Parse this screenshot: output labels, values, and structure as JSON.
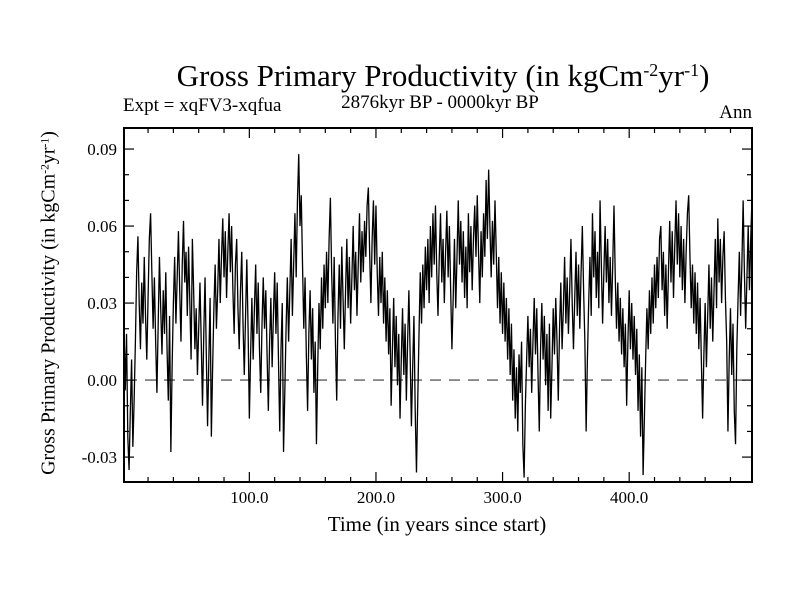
{
  "page": {
    "background": "#ffffff",
    "foreground": "#000000"
  },
  "header": {
    "title": {
      "base1": "Gross Primary Productivity (in kgCm",
      "sup1": "-2",
      "base2": "yr",
      "sup2": "-1",
      "base3": ")"
    },
    "subtitle": "2876kyr BP - 0000kyr BP",
    "experiment_label": "Expt = xqFV3-xqfua",
    "season_label": "Ann"
  },
  "axes": {
    "xlabel": "Time (in years since start)",
    "ylabel": {
      "base1": "Gross Primary Productivity (in kgCm",
      "sup1": "-2",
      "base2": "yr",
      "sup2": "-1",
      "base3": ")"
    }
  },
  "chart_data": {
    "type": "line",
    "title": "Gross Primary Productivity (in kgCm-2yr-1)",
    "subtitle": "2876kyr BP - 0000kyr BP",
    "annotations": [
      "Expt = xqFV3-xqfua",
      "Ann"
    ],
    "xlabel": "Time (in years since start)",
    "ylabel": "Gross Primary Productivity (in kgCm-2yr-1)",
    "xlim": [
      1,
      497
    ],
    "ylim": [
      -0.0397,
      0.0982
    ],
    "xticks": {
      "major": [
        100,
        200,
        300,
        400
      ],
      "labels": [
        "100.0",
        "200.0",
        "300.0",
        "400.0"
      ],
      "minor_step": 20
    },
    "yticks": {
      "major": [
        -0.03,
        0.0,
        0.03,
        0.06,
        0.09
      ],
      "labels": [
        "-0.03",
        "0.00",
        "0.03",
        "0.06",
        "0.09"
      ],
      "minor_step": 0.01
    },
    "zero_line": {
      "value": 0.0,
      "style": "dashed",
      "color": "#3a3a3a"
    },
    "line_color": "#000000",
    "grid": false,
    "legend": null,
    "x_start": 1,
    "x_step": 1,
    "values": [
      0.021,
      -0.004,
      0.018,
      -0.022,
      -0.035,
      -0.012,
      0.008,
      -0.026,
      -0.008,
      0.015,
      0.042,
      0.056,
      0.03,
      0.012,
      0.038,
      0.022,
      0.048,
      0.025,
      0.008,
      0.032,
      0.055,
      0.065,
      0.042,
      0.02,
      0.04,
      0.015,
      -0.005,
      0.022,
      0.048,
      0.028,
      0.01,
      0.035,
      0.018,
      0.042,
      0.012,
      -0.008,
      0.025,
      -0.028,
      0.005,
      0.03,
      0.048,
      0.022,
      0.04,
      0.058,
      0.035,
      0.015,
      0.045,
      0.062,
      0.038,
      0.05,
      0.025,
      0.052,
      0.03,
      0.008,
      0.055,
      0.035,
      0.012,
      0.028,
      0.002,
      0.02,
      0.038,
      0.015,
      -0.01,
      0.018,
      0.04,
      0.01,
      -0.018,
      0.008,
      0.032,
      -0.022,
      0.005,
      0.028,
      0.045,
      0.02,
      0.035,
      0.055,
      0.03,
      0.048,
      0.063,
      0.04,
      0.058,
      0.032,
      0.05,
      0.065,
      0.042,
      0.06,
      0.035,
      0.018,
      0.045,
      0.055,
      0.028,
      0.012,
      0.035,
      0.05,
      0.022,
      0.002,
      0.025,
      0.047,
      0.02,
      -0.015,
      0.01,
      0.032,
      0.008,
      0.028,
      0.045,
      0.018,
      0.038,
      0.012,
      -0.005,
      0.022,
      0.04,
      0.02,
      0.035,
      0.01,
      -0.012,
      0.015,
      0.032,
      0.005,
      0.025,
      0.042,
      0.018,
      0.038,
      0.008,
      -0.02,
      0.012,
      0.03,
      -0.028,
      -0.005,
      0.02,
      0.04,
      0.015,
      0.035,
      0.055,
      0.025,
      0.045,
      0.065,
      0.04,
      0.07,
      0.088,
      0.06,
      0.072,
      0.045,
      0.02,
      0.04,
      0.01,
      -0.012,
      0.018,
      0.035,
      0.008,
      0.028,
      -0.005,
      0.015,
      -0.025,
      0.005,
      0.03,
      0.012,
      0.04,
      0.02,
      0.045,
      0.028,
      0.05,
      0.03,
      0.055,
      0.071,
      0.042,
      0.022,
      0.048,
      0.015,
      -0.008,
      0.025,
      0.045,
      0.02,
      0.052,
      0.032,
      0.012,
      0.035,
      0.055,
      0.028,
      0.048,
      0.022,
      0.04,
      0.06,
      0.035,
      0.05,
      0.025,
      0.045,
      0.065,
      0.038,
      0.058,
      0.042,
      0.062,
      0.048,
      0.068,
      0.075,
      0.05,
      0.03,
      0.055,
      0.07,
      0.045,
      0.068,
      0.042,
      0.025,
      0.048,
      0.03,
      0.05,
      0.022,
      0.04,
      0.015,
      0.035,
      0.01,
      0.028,
      -0.01,
      0.012,
      0.032,
      0.005,
      0.025,
      -0.002,
      0.018,
      -0.015,
      0.008,
      0.028,
      0.002,
      0.022,
      -0.008,
      0.015,
      0.035,
      0.01,
      -0.018,
      0.005,
      0.025,
      -0.012,
      -0.036,
      -0.008,
      0.018,
      0.042,
      0.022,
      0.045,
      0.028,
      0.052,
      0.035,
      0.055,
      0.03,
      0.06,
      0.04,
      0.065,
      0.045,
      0.068,
      0.042,
      0.025,
      0.048,
      0.065,
      0.038,
      0.055,
      0.03,
      0.05,
      0.066,
      0.04,
      0.06,
      0.035,
      0.012,
      0.032,
      0.055,
      0.028,
      0.048,
      0.07,
      0.045,
      0.062,
      0.038,
      0.058,
      0.032,
      0.052,
      0.028,
      0.065,
      0.042,
      0.06,
      0.035,
      0.055,
      0.068,
      0.048,
      0.072,
      0.05,
      0.03,
      0.058,
      0.04,
      0.065,
      0.048,
      0.078,
      0.055,
      0.082,
      0.06,
      0.04,
      0.062,
      0.045,
      0.07,
      0.05,
      0.028,
      0.048,
      0.022,
      0.042,
      0.018,
      0.038,
      0.015,
      0.032,
      0.008,
      0.028,
      0.002,
      0.022,
      -0.008,
      0.012,
      -0.015,
      0.005,
      -0.02,
      0.01,
      -0.005,
      0.015,
      -0.025,
      -0.038,
      -0.01,
      0.008,
      0.025,
      0.005,
      0.02,
      -0.005,
      0.015,
      0.032,
      0.01,
      0.028,
      0.002,
      -0.02,
      0.012,
      0.03,
      0.008,
      0.025,
      -0.002,
      0.018,
      -0.012,
      0.022,
      -0.015,
      0.005,
      0.028,
      0.01,
      0.032,
      0.015,
      -0.008,
      0.02,
      0.038,
      0.012,
      0.028,
      0.048,
      0.022,
      0.04,
      0.018,
      0.035,
      0.055,
      0.03,
      0.012,
      0.032,
      0.05,
      0.025,
      0.045,
      0.02,
      0.042,
      0.06,
      0.035,
      0.015,
      -0.02,
      0.008,
      0.03,
      0.048,
      0.025,
      0.065,
      0.04,
      0.058,
      0.032,
      0.05,
      0.028,
      0.07,
      0.045,
      0.022,
      0.042,
      0.06,
      0.038,
      0.055,
      0.03,
      0.048,
      0.025,
      0.045,
      0.068,
      0.04,
      0.02,
      0.038,
      0.015,
      0.032,
      0.01,
      0.028,
      0.005,
      0.022,
      -0.01,
      0.015,
      0.035,
      0.012,
      0.03,
      0.008,
      0.025,
      0.002,
      0.02,
      -0.012,
      0.01,
      -0.022,
      0.005,
      -0.037,
      -0.015,
      0.008,
      0.028,
      0.012,
      0.035,
      0.018,
      0.04,
      0.022,
      0.045,
      0.028,
      0.048,
      0.032,
      0.055,
      0.06,
      0.035,
      0.05,
      0.025,
      0.045,
      0.02,
      0.042,
      0.062,
      0.038,
      0.058,
      0.032,
      0.052,
      0.07,
      0.045,
      0.065,
      0.04,
      0.06,
      0.035,
      0.055,
      0.03,
      0.05,
      0.065,
      0.072,
      0.048,
      0.028,
      0.045,
      0.022,
      0.042,
      0.018,
      0.038,
      0.012,
      0.032,
      0.008,
      -0.015,
      0.01,
      0.03,
      0.005,
      0.025,
      0.045,
      0.02,
      0.04,
      0.015,
      0.035,
      0.055,
      0.028,
      0.063,
      0.038,
      0.055,
      0.03,
      0.048,
      0.058,
      0.032,
      0.015,
      -0.02,
      0.008,
      0.028,
      0.002,
      0.022,
      -0.012,
      -0.025,
      0.012,
      0.032,
      0.05,
      0.025,
      0.045,
      0.07,
      0.042,
      0.02,
      0.04,
      0.06,
      0.035,
      0.055,
      0.071
    ]
  }
}
